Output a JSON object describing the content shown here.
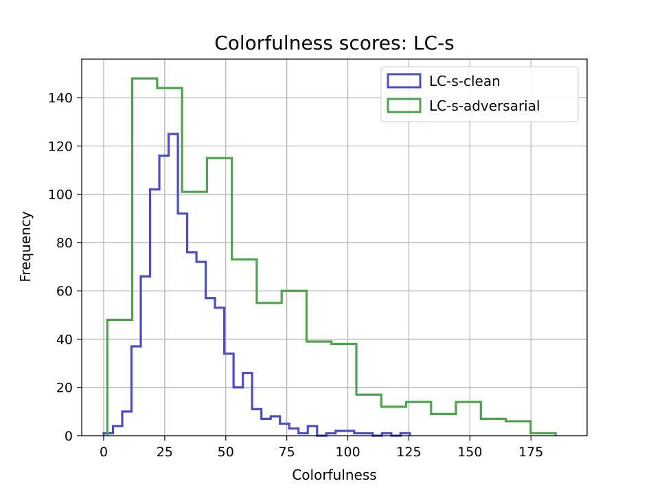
{
  "chart_data": {
    "type": "histogram",
    "title": "Colorfulness scores: LC-s",
    "xlabel": "Colorfulness",
    "ylabel": "Frequency",
    "xlim": [
      -9,
      198
    ],
    "ylim": [
      0,
      156
    ],
    "xticks": [
      "0",
      "25",
      "50",
      "75",
      "100",
      "125",
      "150",
      "175"
    ],
    "yticks": [
      "0",
      "20",
      "40",
      "60",
      "80",
      "100",
      "120",
      "140"
    ],
    "grid": true,
    "legend_position": "top-right",
    "series": [
      {
        "name": "LC-s-clean",
        "color": "#4c4cc4",
        "edges": [
          0,
          3.8,
          7.6,
          11.4,
          15.2,
          19,
          22.8,
          26.6,
          30.4,
          34.2,
          38,
          41.8,
          45.6,
          49.4,
          53.2,
          57,
          60.8,
          64.6,
          68.4,
          72.2,
          76,
          79.8,
          83.6,
          87.4,
          91.2,
          95,
          98.8,
          102.6,
          106.4,
          110.2,
          114,
          117.8,
          121.6,
          125.4
        ],
        "counts": [
          1,
          4,
          10,
          37,
          66,
          102,
          116,
          125,
          92,
          76,
          72,
          57,
          53,
          34,
          20,
          26,
          11,
          7,
          8,
          5,
          3,
          1,
          4,
          0,
          1,
          2,
          2,
          1,
          1,
          0,
          1,
          0,
          1
        ]
      },
      {
        "name": "LC-s-adversarial",
        "color": "#4fa34f",
        "edges": [
          1.5,
          11.7,
          21.9,
          32.1,
          42.3,
          52.5,
          62.7,
          72.9,
          83.1,
          93.3,
          103.5,
          113.7,
          123.9,
          134.1,
          144.3,
          154.5,
          164.7,
          174.9,
          185.1
        ],
        "counts": [
          48,
          148,
          144,
          101,
          115,
          73,
          55,
          60,
          39,
          38,
          17,
          12,
          14,
          9,
          14,
          7,
          6,
          1
        ]
      }
    ]
  }
}
